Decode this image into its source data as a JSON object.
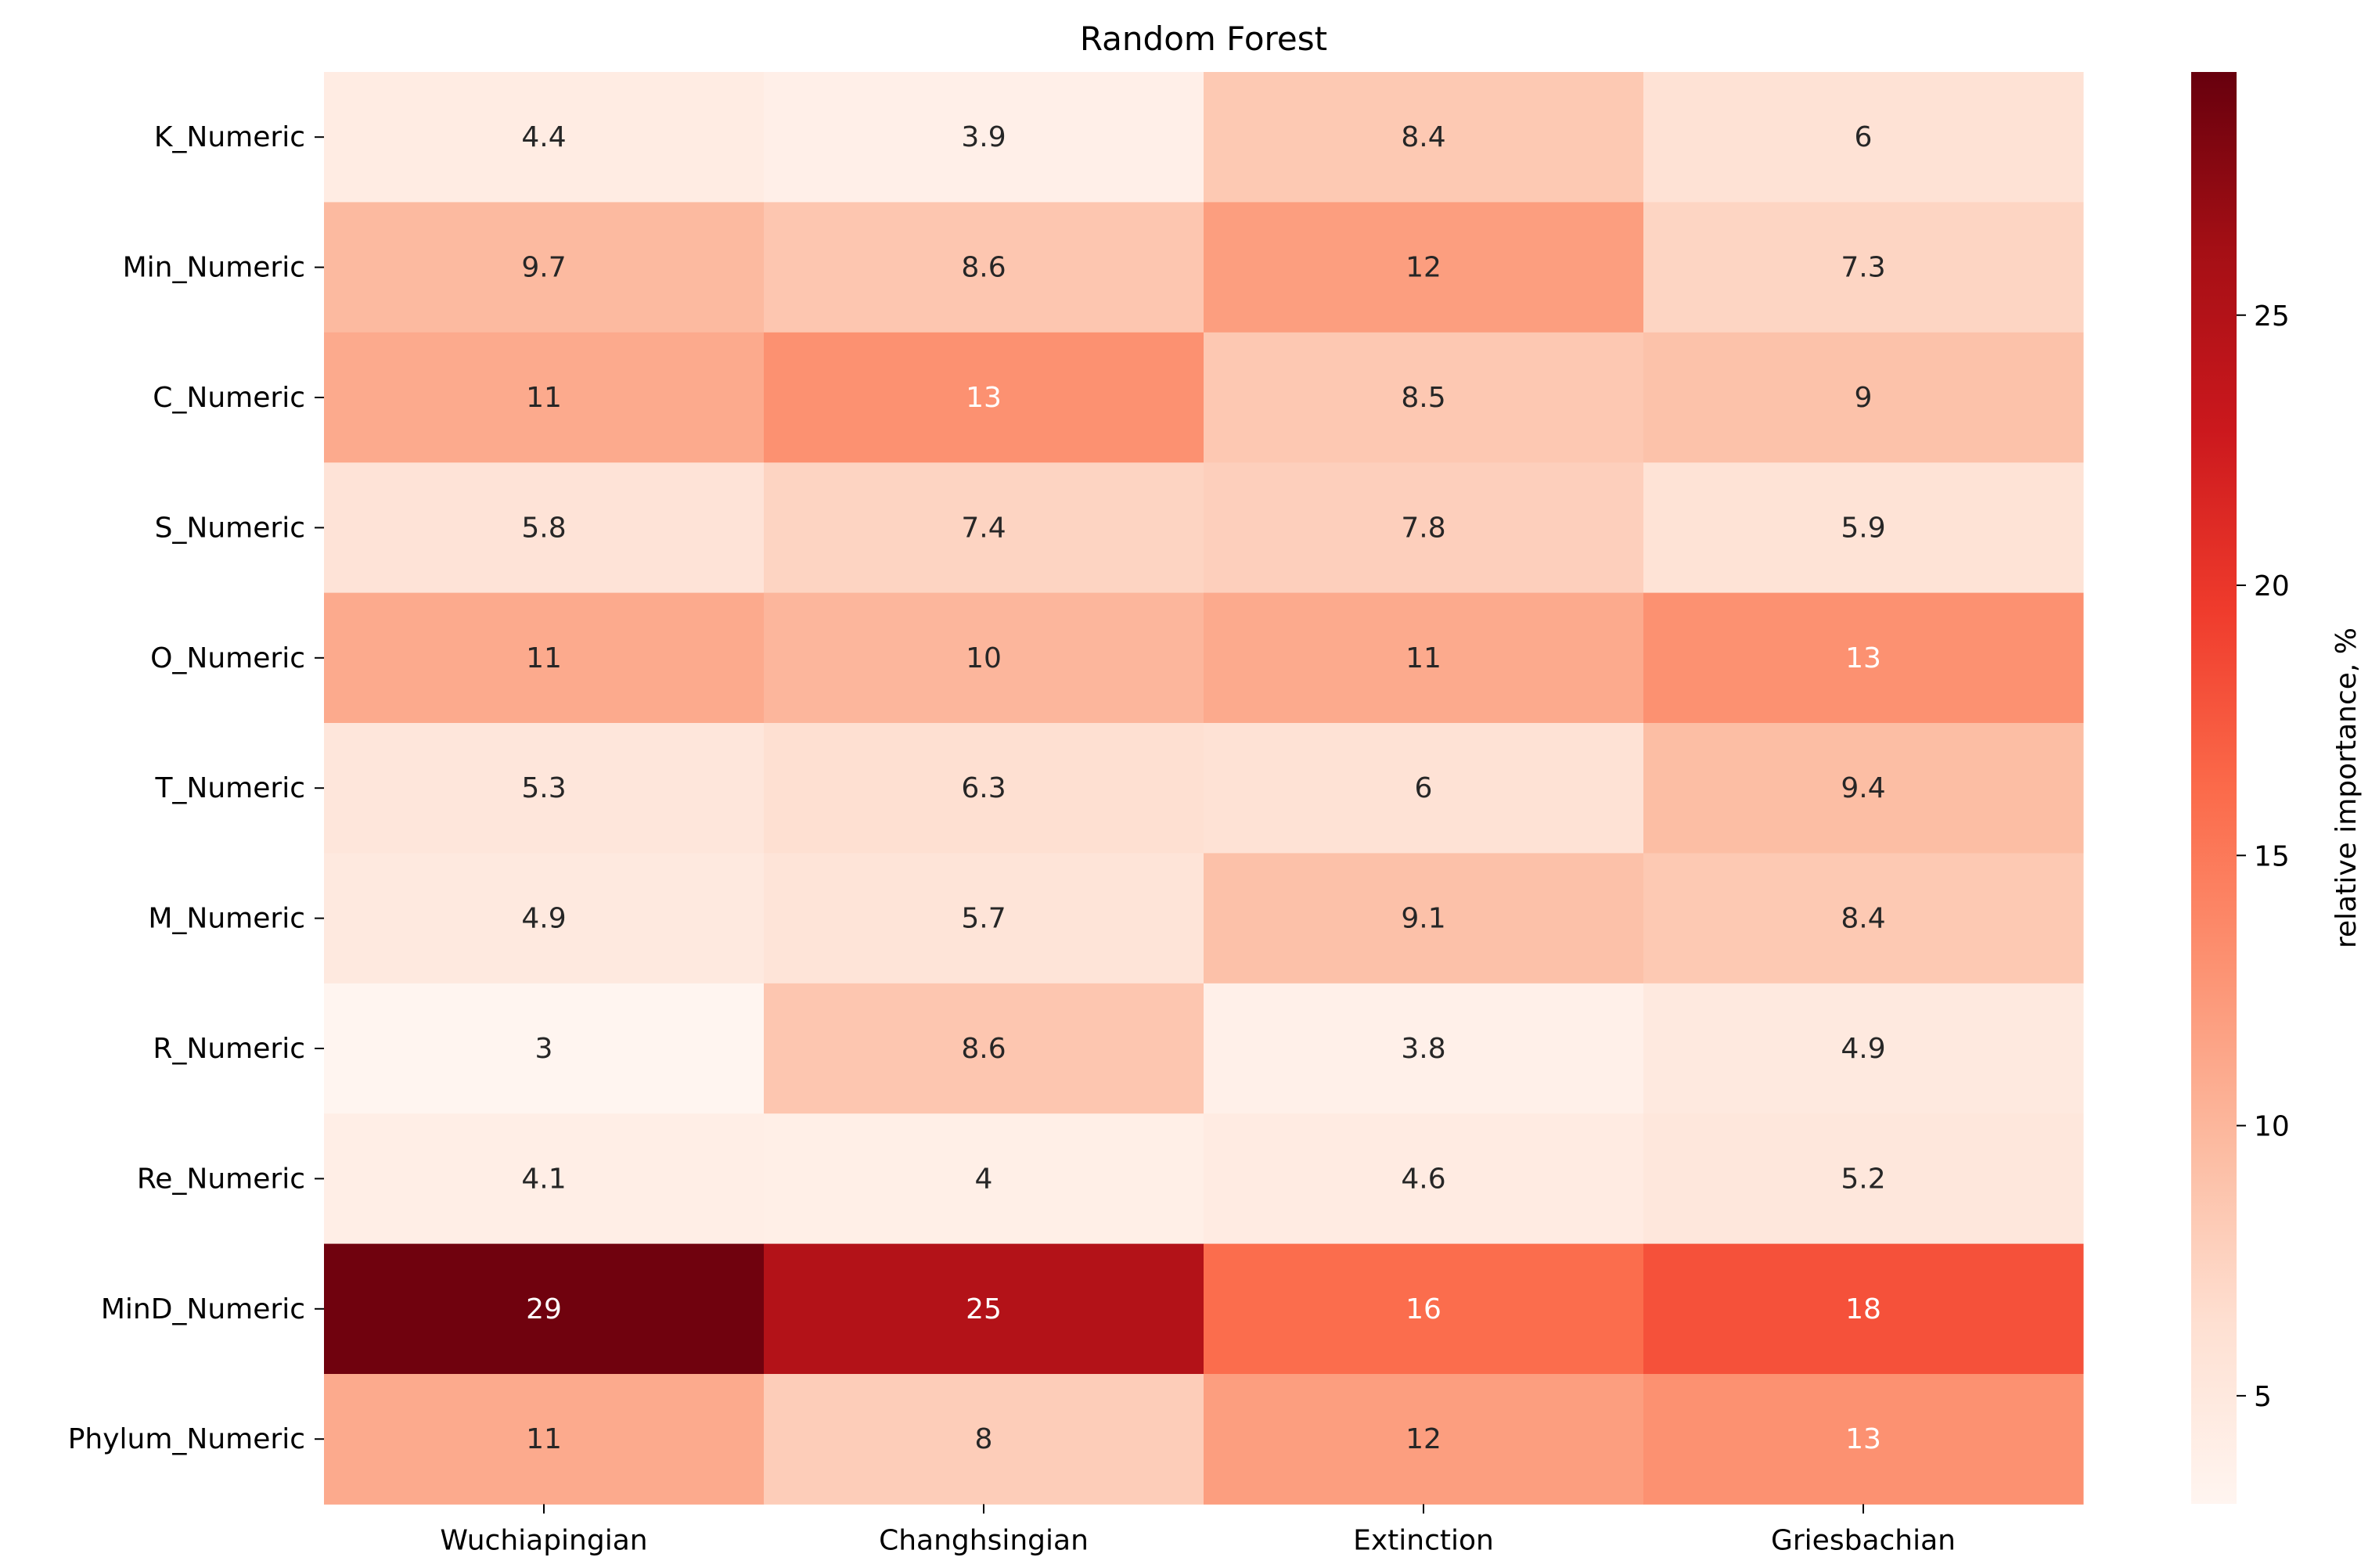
{
  "chart_data": {
    "type": "heatmap",
    "title": "Random Forest",
    "xlabel": "",
    "ylabel": "",
    "columns": [
      "Wuchiapingian",
      "Changhsingian",
      "Extinction",
      "Griesbachian"
    ],
    "rows": [
      "K_Numeric",
      "Min_Numeric",
      "C_Numeric",
      "S_Numeric",
      "O_Numeric",
      "T_Numeric",
      "M_Numeric",
      "R_Numeric",
      "Re_Numeric",
      "MinD_Numeric",
      "Phylum_Numeric"
    ],
    "values": [
      [
        4.4,
        3.9,
        8.4,
        6
      ],
      [
        9.7,
        8.6,
        12,
        7.3
      ],
      [
        11,
        13,
        8.5,
        9
      ],
      [
        5.8,
        7.4,
        7.8,
        5.9
      ],
      [
        11,
        10,
        11,
        13
      ],
      [
        5.3,
        6.3,
        6,
        9.4
      ],
      [
        4.9,
        5.7,
        9.1,
        8.4
      ],
      [
        3,
        8.6,
        3.8,
        4.9
      ],
      [
        4.1,
        4,
        4.6,
        5.2
      ],
      [
        29,
        25,
        16,
        18
      ],
      [
        11,
        8,
        12,
        13
      ]
    ],
    "colormap": "Reds",
    "colorbar": {
      "label": "relative importance, %",
      "range": [
        3,
        29.5
      ],
      "ticks": [
        5,
        10,
        15,
        20,
        25
      ]
    },
    "grid": false,
    "legend": "colorbar-right"
  }
}
